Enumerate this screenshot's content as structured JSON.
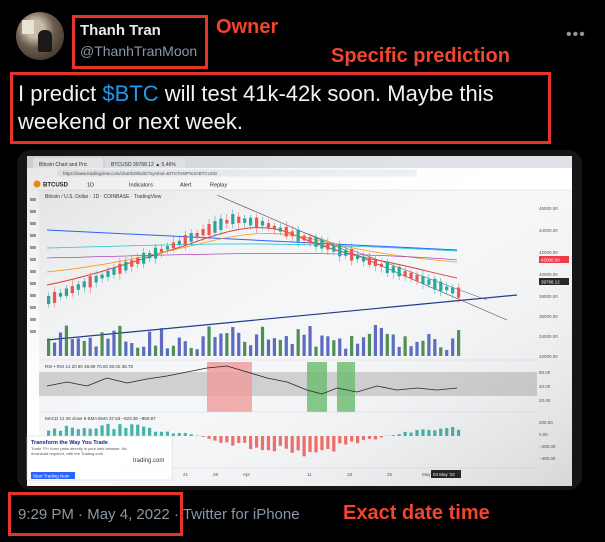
{
  "author": {
    "name": "Thanh Tran",
    "handle": "@ThanhTranMoon"
  },
  "menu_icon": "more-horizontal-icon",
  "tweet": {
    "prefix": "I predict ",
    "cashtag": "$BTC",
    "suffix": " will test 41k-42k soon. Maybe this weekend or next week."
  },
  "meta": {
    "time": "9:29 PM",
    "sep1": " · ",
    "date": "May 4, 2022",
    "sep2": " · ",
    "source": "Twitter for iPhone"
  },
  "annotations": {
    "owner": "Owner",
    "prediction": "Specific prediction",
    "datetime": "Exact date time"
  },
  "colors": {
    "accent": "#1d9bf0",
    "annotation": "#e5352b",
    "muted": "#8b98a5"
  },
  "photo": {
    "browser_tabs": [
      "Bitcoin Chart and Pric",
      "BTCUSD 39788.12 ▲ 5.46%"
    ],
    "url": "https://www.tradingview.com/chart/U9ha/ti/?symbol=BITSTAMP%3ABTCUSD",
    "symbol": "BTCUSD",
    "toolbar": [
      "1D",
      "Indicators",
      "Alert",
      "Replay"
    ],
    "chart_title": "Bitcoin / U.S. Dollar · 1D · COINBASE · TradingView",
    "rsi_label": "RSI • RSI 14 20 80 48.89 70.00 30.00 38.78",
    "macd_label": "MACD 12 26 close 9 EMA EMA 37.53 −923.36 −960.87",
    "x_ticks": [
      "21",
      "28",
      "Apr",
      "11",
      "18",
      "25",
      "May"
    ],
    "y_ticks": [
      "46000.00",
      "44000.00",
      "42000.00",
      "40000.00",
      "38000.00",
      "36000.00",
      "34000.00",
      "32000.00"
    ],
    "rsi_ticks": [
      "80.00",
      "40.00",
      "20.00"
    ],
    "macd_ticks": [
      "200.00",
      "0.00",
      "−200.00",
      "−400.00"
    ],
    "price_tag": "42000.00",
    "last_price_tag": "39788.12",
    "date_tag": "04 May '22",
    "promo": {
      "title": "Transform the Way You Trade",
      "body": "Trade 70+ forex pairs directly in your web browser. No download required, with the Trading.com",
      "brand": "trading.com",
      "cta": "Start Trading Now"
    }
  }
}
